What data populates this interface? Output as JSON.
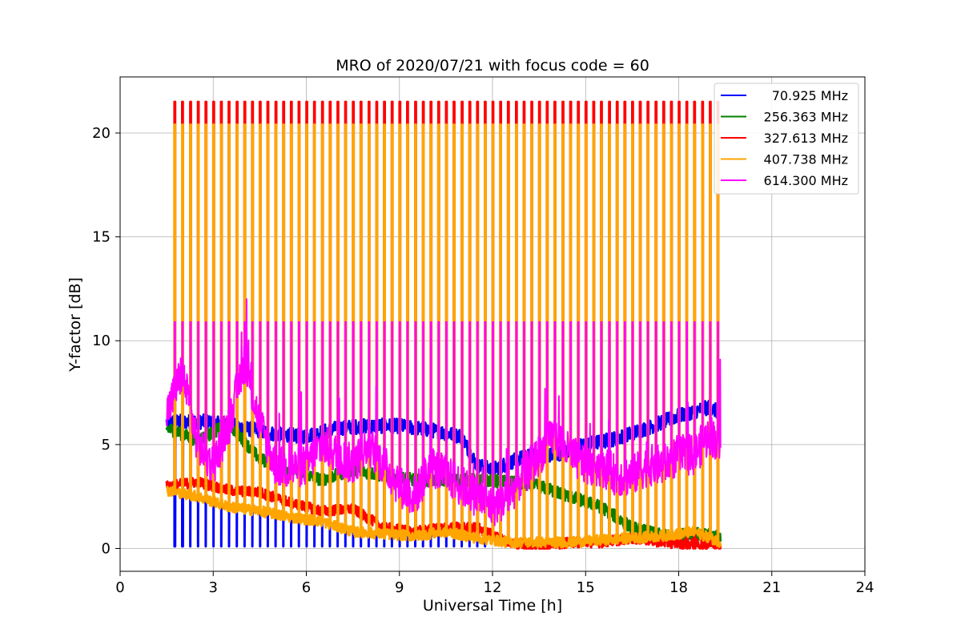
{
  "chart_data": {
    "type": "line",
    "title": "MRO of 2020/07/21 with focus code = 60",
    "xlabel": "Universal Time [h]",
    "ylabel": "Y-factor [dB]",
    "xlim": [
      0,
      24
    ],
    "ylim": [
      -1.1,
      22.7
    ],
    "xticks": [
      0,
      3,
      6,
      9,
      12,
      15,
      18,
      21,
      24
    ],
    "yticks": [
      0,
      5,
      10,
      15,
      20
    ],
    "grid": true,
    "legend_position": "top-right",
    "x_start": 1.5,
    "x_end": 19.35,
    "pulse_start": 1.75,
    "pulse_period": 0.25,
    "series": [
      {
        "name": "70.925 MHz",
        "color": "#0000ff",
        "baseline": [
          [
            1.5,
            6.1
          ],
          [
            3,
            6.1
          ],
          [
            4,
            5.8
          ],
          [
            5,
            5.5
          ],
          [
            6,
            5.4
          ],
          [
            7,
            5.8
          ],
          [
            8,
            5.9
          ],
          [
            9,
            5.9
          ],
          [
            10,
            5.7
          ],
          [
            11,
            5.4
          ],
          [
            11.5,
            4.0
          ],
          [
            12,
            3.8
          ],
          [
            13,
            4.4
          ],
          [
            14,
            4.5
          ],
          [
            15,
            5.0
          ],
          [
            16,
            5.3
          ],
          [
            17,
            5.8
          ],
          [
            18,
            6.4
          ],
          [
            19,
            6.8
          ],
          [
            19.35,
            6.5
          ]
        ],
        "baseline_noise": 0.35,
        "pulse_low": 0.1,
        "pulse_low_until": 12
      },
      {
        "name": "256.363 MHz",
        "color": "#008000",
        "baseline": [
          [
            1.5,
            5.8
          ],
          [
            2.5,
            5.2
          ],
          [
            3.5,
            6.0
          ],
          [
            4.5,
            4.3
          ],
          [
            5.5,
            3.8
          ],
          [
            6.5,
            3.3
          ],
          [
            7.5,
            3.8
          ],
          [
            8.5,
            3.5
          ],
          [
            9.5,
            3.3
          ],
          [
            10.5,
            3.3
          ],
          [
            11.5,
            3.3
          ],
          [
            12.5,
            3.2
          ],
          [
            13.5,
            3.0
          ],
          [
            14.5,
            2.5
          ],
          [
            15.5,
            2.0
          ],
          [
            16.5,
            1.0
          ],
          [
            17.5,
            0.6
          ],
          [
            18.5,
            0.7
          ],
          [
            19.35,
            0.6
          ]
        ],
        "baseline_noise": 0.3
      },
      {
        "name": "327.613 MHz",
        "color": "#ff0000",
        "baseline": [
          [
            1.5,
            3.0
          ],
          [
            2.5,
            3.2
          ],
          [
            3.5,
            2.8
          ],
          [
            4.5,
            2.7
          ],
          [
            5.5,
            2.2
          ],
          [
            6.5,
            1.8
          ],
          [
            7.5,
            1.9
          ],
          [
            8.5,
            1.0
          ],
          [
            9.5,
            0.8
          ],
          [
            10.5,
            1.0
          ],
          [
            11.5,
            1.0
          ],
          [
            12.5,
            0.3
          ],
          [
            13.5,
            0.1
          ],
          [
            14.5,
            0.3
          ],
          [
            15.5,
            0.3
          ],
          [
            16.5,
            0.5
          ],
          [
            17.5,
            0.3
          ],
          [
            18.5,
            0.2
          ],
          [
            19.35,
            0.2
          ]
        ],
        "baseline_noise": 0.25,
        "pulse_high": 21.5
      },
      {
        "name": "407.738 MHz",
        "color": "#ffa500",
        "baseline": [
          [
            1.5,
            2.8
          ],
          [
            2.5,
            2.5
          ],
          [
            3.5,
            2.0
          ],
          [
            4.5,
            1.8
          ],
          [
            5.5,
            1.5
          ],
          [
            6.5,
            1.3
          ],
          [
            7.5,
            0.8
          ],
          [
            8.5,
            0.7
          ],
          [
            9.5,
            0.6
          ],
          [
            10.5,
            0.8
          ],
          [
            11.5,
            0.5
          ],
          [
            12.5,
            0.3
          ],
          [
            13.5,
            0.3
          ],
          [
            14.5,
            0.3
          ],
          [
            15.5,
            0.4
          ],
          [
            16.5,
            0.5
          ],
          [
            17.5,
            0.6
          ],
          [
            18.5,
            0.8
          ],
          [
            19.35,
            0.3
          ]
        ],
        "baseline_noise": 0.25,
        "pulse_high": 20.4
      },
      {
        "name": "614.300 MHz",
        "color": "#ff00ff",
        "baseline": [
          [
            1.5,
            6.5
          ],
          [
            2,
            8.5
          ],
          [
            2.5,
            5.0
          ],
          [
            3,
            4.0
          ],
          [
            3.5,
            6.0
          ],
          [
            4,
            9.0
          ],
          [
            4.5,
            6.0
          ],
          [
            5,
            4.0
          ],
          [
            5.5,
            3.8
          ],
          [
            6,
            4.0
          ],
          [
            6.5,
            5.0
          ],
          [
            7,
            4.5
          ],
          [
            7.5,
            4.0
          ],
          [
            8,
            5.0
          ],
          [
            8.5,
            4.0
          ],
          [
            9,
            3.0
          ],
          [
            9.5,
            2.5
          ],
          [
            10,
            4.0
          ],
          [
            10.5,
            3.5
          ],
          [
            11,
            3.0
          ],
          [
            11.5,
            2.5
          ],
          [
            12,
            2.0
          ],
          [
            12.5,
            2.5
          ],
          [
            13,
            3.5
          ],
          [
            13.5,
            4.5
          ],
          [
            14,
            5.5
          ],
          [
            14.5,
            4.5
          ],
          [
            15,
            4.0
          ],
          [
            15.5,
            4.0
          ],
          [
            16,
            3.5
          ],
          [
            16.5,
            3.5
          ],
          [
            17,
            4.0
          ],
          [
            17.5,
            4.0
          ],
          [
            18,
            4.5
          ],
          [
            18.5,
            4.5
          ],
          [
            19,
            5.5
          ],
          [
            19.35,
            5.0
          ]
        ],
        "baseline_noise": 1.0,
        "pulse_high": 10.9
      }
    ]
  }
}
